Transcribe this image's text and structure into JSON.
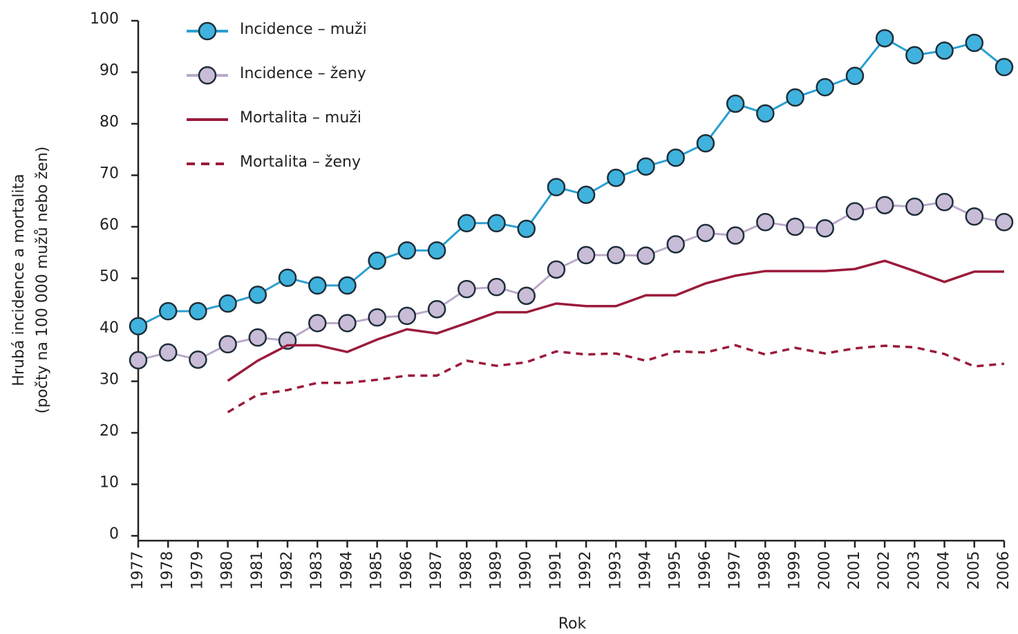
{
  "chart_data": {
    "type": "line",
    "ylabel": [
      "Hrubá incidence a mortalita",
      "(počty na 100 000 mužů nebo žen)"
    ],
    "xlabel": "Rok",
    "x": [
      1977,
      1978,
      1979,
      1980,
      1981,
      1982,
      1983,
      1984,
      1985,
      1986,
      1987,
      1988,
      1989,
      1990,
      1991,
      1992,
      1993,
      1994,
      1995,
      1996,
      1997,
      1998,
      1999,
      2000,
      2001,
      2002,
      2003,
      2004,
      2005,
      2006
    ],
    "xlim": [
      1977,
      2006
    ],
    "ylim": [
      0,
      100
    ],
    "yticks": [
      0,
      10,
      20,
      30,
      40,
      50,
      60,
      70,
      80,
      90,
      100
    ],
    "legend": "top-left",
    "series": [
      {
        "name": "Incidence – muži",
        "color": "#2a9fd0",
        "marker_color": "#3fb3de",
        "style": "marker",
        "values": [
          40.7,
          43.6,
          43.6,
          45.1,
          46.8,
          50.1,
          48.6,
          48.6,
          53.4,
          55.4,
          55.4,
          60.7,
          60.7,
          59.6,
          67.7,
          66.2,
          69.5,
          71.7,
          73.4,
          76.2,
          83.9,
          82.0,
          85.1,
          87.1,
          89.3,
          96.6,
          93.3,
          94.2,
          95.7,
          91.0
        ]
      },
      {
        "name": "Incidence – ženy",
        "color": "#b9a9c9",
        "marker_color": "#c9bcd7",
        "style": "marker",
        "values": [
          34.1,
          35.6,
          34.2,
          37.2,
          38.5,
          37.9,
          41.3,
          41.3,
          42.4,
          42.7,
          44.0,
          47.9,
          48.3,
          46.6,
          51.7,
          54.5,
          54.5,
          54.4,
          56.6,
          58.8,
          58.3,
          60.9,
          60.0,
          59.7,
          63.0,
          64.2,
          63.9,
          64.8,
          62.0,
          60.9
        ]
      },
      {
        "name": "Mortalita – muži",
        "color": "#9b1b3a",
        "style": "solid",
        "values": [
          null,
          null,
          null,
          30.1,
          34.0,
          37.0,
          37.0,
          35.7,
          38.1,
          40.1,
          39.3,
          41.3,
          43.4,
          43.4,
          45.1,
          44.6,
          44.6,
          46.7,
          46.7,
          49.0,
          50.5,
          51.4,
          51.4,
          51.4,
          51.8,
          53.4,
          51.4,
          49.3,
          51.3,
          51.3
        ]
      },
      {
        "name": "Mortalita – ženy",
        "color": "#9b1b3a",
        "style": "dashed",
        "values": [
          null,
          null,
          null,
          24.0,
          27.4,
          28.3,
          29.7,
          29.7,
          30.3,
          31.1,
          31.1,
          34.0,
          33.0,
          33.7,
          35.8,
          35.2,
          35.4,
          34.0,
          35.8,
          35.6,
          37.0,
          35.2,
          36.5,
          35.4,
          36.4,
          36.9,
          36.6,
          35.3,
          32.9,
          33.4
        ]
      }
    ]
  }
}
